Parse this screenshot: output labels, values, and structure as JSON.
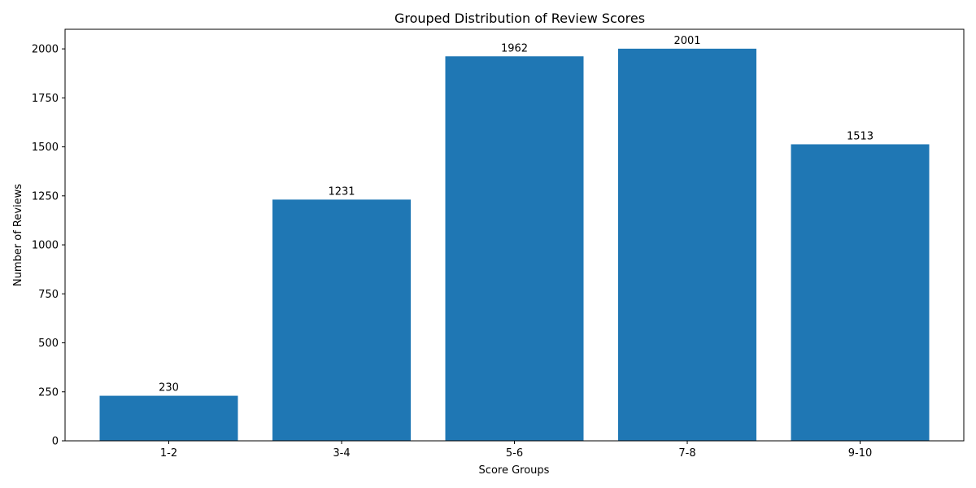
{
  "chart_data": {
    "type": "bar",
    "title": "Grouped Distribution of Review Scores",
    "xlabel": "Score Groups",
    "ylabel": "Number of Reviews",
    "categories": [
      "1-2",
      "3-4",
      "5-6",
      "7-8",
      "9-10"
    ],
    "values": [
      230,
      1231,
      1962,
      2001,
      1513
    ],
    "data_labels": [
      "230",
      "1231",
      "1962",
      "2001",
      "1513"
    ],
    "ylim": [
      0,
      2100
    ],
    "yticks": [
      0,
      250,
      500,
      750,
      1000,
      1250,
      1500,
      1750,
      2000
    ],
    "grid": false,
    "legend": "none",
    "colors": {
      "bar": "#1f77b4",
      "axis": "#000000"
    }
  }
}
